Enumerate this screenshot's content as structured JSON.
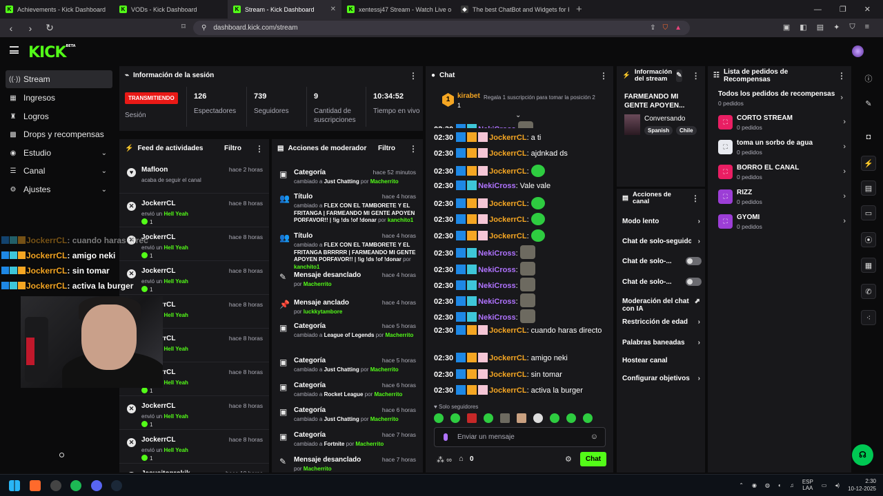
{
  "browser": {
    "tabs": [
      {
        "title": "Achievements - Kick Dashboard",
        "fav": "K",
        "active": false
      },
      {
        "title": "VODs - Kick Dashboard",
        "fav": "K",
        "active": false
      },
      {
        "title": "Stream - Kick Dashboard",
        "fav": "K",
        "active": true
      },
      {
        "title": "xentessj47 Stream - Watch Live o",
        "fav": "K",
        "active": false
      },
      {
        "title": "The best ChatBot and Widgets for Ki",
        "fav": "◆",
        "active": false
      }
    ],
    "new_tab": "+",
    "url": "dashboard.kick.com/stream"
  },
  "app": {
    "logo": "KICK",
    "logo_badge": "BETA"
  },
  "sidebar": {
    "items": [
      {
        "label": "Stream",
        "icon": "((•))"
      },
      {
        "label": "Ingresos",
        "icon": "▦"
      },
      {
        "label": "Logros",
        "icon": "🏆"
      },
      {
        "label": "Drops y recompensas",
        "icon": "🎁"
      },
      {
        "label": "Estudio",
        "icon": "◉"
      },
      {
        "label": "Canal",
        "icon": "☰"
      },
      {
        "label": "Ajustes",
        "icon": "⚙"
      }
    ]
  },
  "session": {
    "title": "Información de la sesión",
    "live_badge": "TRANSMITIENDO",
    "live_label": "Sesión",
    "stats": [
      {
        "value": "126",
        "label": "Espectadores"
      },
      {
        "value": "739",
        "label": "Seguidores"
      },
      {
        "value": "9",
        "label": "Cantidad de suscripciones"
      },
      {
        "value": "10:34:52",
        "label": "Tiempo en vivo"
      }
    ]
  },
  "feed": {
    "title": "Feed de actividades",
    "filter": "Filtro",
    "items": [
      {
        "name": "Mafloon",
        "time": "hace 2 horas",
        "desc": "acaba de seguir el canal",
        "gift": "",
        "count": "",
        "icon": "♥"
      },
      {
        "name": "JockerrCL",
        "time": "hace 8 horas",
        "desc": "envió un ",
        "gift": "Hell Yeah",
        "count": "1",
        "icon": "✕"
      },
      {
        "name": "JockerrCL",
        "time": "hace 8 horas",
        "desc": "envió un ",
        "gift": "Hell Yeah",
        "count": "1",
        "icon": "✕"
      },
      {
        "name": "JockerrCL",
        "time": "hace 8 horas",
        "desc": "envió un ",
        "gift": "Hell Yeah",
        "count": "1",
        "icon": "✕"
      },
      {
        "name": "JockerrCL",
        "time": "hace 8 horas",
        "desc": "envió un ",
        "gift": "Hell Yeah",
        "count": "1",
        "icon": "✕"
      },
      {
        "name": "JockerrCL",
        "time": "hace 8 horas",
        "desc": "envió un ",
        "gift": "Hell Yeah",
        "count": "1",
        "icon": "✕"
      },
      {
        "name": "JockerrCL",
        "time": "hace 8 horas",
        "desc": "envió un ",
        "gift": "Hell Yeah",
        "count": "1",
        "icon": "✕"
      },
      {
        "name": "JockerrCL",
        "time": "hace 8 horas",
        "desc": "envió un ",
        "gift": "Hell Yeah",
        "count": "1",
        "icon": "✕"
      },
      {
        "name": "JockerrCL",
        "time": "hace 8 horas",
        "desc": "envió un ",
        "gift": "Hell Yeah",
        "count": "1",
        "icon": "✕"
      },
      {
        "name": "Jesusitoprokik",
        "time": "hace 10 horas",
        "desc": "",
        "gift": "",
        "count": "",
        "icon": "♥"
      }
    ]
  },
  "mod": {
    "title": "Acciones de moderador",
    "filter": "Filtro",
    "items": [
      {
        "name": "Categoría",
        "time": "hace 52 minutos",
        "pre": "cambiado a ",
        "val": "Just Chatting",
        "mid": " por ",
        "by": "Macherrito",
        "icon": "▣"
      },
      {
        "name": "Título",
        "time": "hace 4 horas",
        "pre": "cambiado a ",
        "val": "FLEX CON EL TAMBORETE Y EL FRITANGA | FARMEANDO MI GENTE APOYEN PORFAVOR!! | !ig !ds !of !donar",
        "mid": " por ",
        "by": "kanchito1",
        "icon": "👥"
      },
      {
        "name": "Título",
        "time": "hace 4 horas",
        "pre": "cambiado a ",
        "val": "FLEX CON EL TAMBORETE Y EL FRITANGA BRRRRR | FARMEANDO MI GENTE APOYEN PORFAVOR!! | !ig !ds !of !donar",
        "mid": " por ",
        "by": "kanchito1",
        "icon": "👥"
      },
      {
        "name": "Mensaje desanclado",
        "time": "hace 4 horas",
        "pre": "",
        "val": "",
        "mid": "por ",
        "by": "Macherrito",
        "icon": "✎"
      },
      {
        "name": "Mensaje anclado",
        "time": "hace 4 horas",
        "pre": "",
        "val": "",
        "mid": "por ",
        "by": "luckkytambore",
        "icon": "📌"
      },
      {
        "name": "Categoría",
        "time": "hace 5 horas",
        "pre": "cambiado a ",
        "val": "League of Legends",
        "mid": " por ",
        "by": "Macherrito",
        "icon": "▣"
      },
      {
        "name": "Categoría",
        "time": "hace 5 horas",
        "pre": "cambiado a ",
        "val": "Just Chatting",
        "mid": " por ",
        "by": "Macherrito",
        "icon": "▣"
      },
      {
        "name": "Categoría",
        "time": "hace 6 horas",
        "pre": "cambiado a ",
        "val": "Rocket League",
        "mid": " por ",
        "by": "Macherrito",
        "icon": "▣"
      },
      {
        "name": "Categoría",
        "time": "hace 6 horas",
        "pre": "cambiado a ",
        "val": "Just Chatting",
        "mid": " por ",
        "by": "Macherrito",
        "icon": "▣"
      },
      {
        "name": "Categoría",
        "time": "hace 7 horas",
        "pre": "cambiado a ",
        "val": "Fortnite",
        "mid": " por ",
        "by": "Macherrito",
        "icon": "▣"
      },
      {
        "name": "Mensaje desanclado",
        "time": "hace 7 horas",
        "pre": "",
        "val": "",
        "mid": "por ",
        "by": "Macherrito",
        "icon": "✎"
      }
    ]
  },
  "overlay": {
    "lines": [
      {
        "user": "JockerrCL",
        "msg": ": cuando haras direc"
      },
      {
        "user": "JockerrCL",
        "msg": ": amigo neki"
      },
      {
        "user": "JockerrCL",
        "msg": ": sin tomar"
      },
      {
        "user": "JockerrCL",
        "msg": ": activa la burger"
      }
    ]
  },
  "chat": {
    "title": "Chat",
    "pinned": {
      "user": "kirabet",
      "count": "1",
      "msg": "Regala 1 suscripción para tomar la posición 2",
      "rank": "1"
    },
    "messages": [
      {
        "time": "02:30",
        "user": "NekiCross",
        "type": "u2",
        "text": "",
        "emote": "em2"
      },
      {
        "time": "02:30",
        "user": "JockerrCL",
        "type": "u1",
        "text": ": a ti",
        "emote": ""
      },
      {
        "time": "02:30",
        "user": "JockerrCL",
        "type": "u1",
        "text": ": ajdnkad ds",
        "emote": ""
      },
      {
        "time": "02:30",
        "user": "JockerrCL",
        "type": "u1",
        "text": ":",
        "emote": "em"
      },
      {
        "time": "02:30",
        "user": "NekiCross",
        "type": "u2",
        "text": ": Vale vale",
        "emote": ""
      },
      {
        "time": "02:30",
        "user": "JockerrCL",
        "type": "u1",
        "text": ":",
        "emote": "em"
      },
      {
        "time": "02:30",
        "user": "JockerrCL",
        "type": "u1",
        "text": ":",
        "emote": "em"
      },
      {
        "time": "02:30",
        "user": "JockerrCL",
        "type": "u1",
        "text": ":",
        "emote": "em"
      },
      {
        "time": "02:30",
        "user": "NekiCross",
        "type": "u2",
        "text": ":",
        "emote": "em2"
      },
      {
        "time": "02:30",
        "user": "NekiCross",
        "type": "u2",
        "text": ":",
        "emote": "em2"
      },
      {
        "time": "02:30",
        "user": "NekiCross",
        "type": "u2",
        "text": ":",
        "emote": "em2"
      },
      {
        "time": "02:30",
        "user": "NekiCross",
        "type": "u2",
        "text": ":",
        "emote": "em2"
      },
      {
        "time": "02:30",
        "user": "NekiCross",
        "type": "u2",
        "text": ":",
        "emote": "em2"
      },
      {
        "time": "02:30",
        "user": "JockerrCL",
        "type": "u1",
        "text": ": cuando haras directo",
        "emote": ""
      },
      {
        "time": "02:30",
        "user": "JockerrCL",
        "type": "u1",
        "text": ": amigo neki",
        "emote": ""
      },
      {
        "time": "02:30",
        "user": "JockerrCL",
        "type": "u1",
        "text": ": sin tomar",
        "emote": ""
      },
      {
        "time": "02:30",
        "user": "JockerrCL",
        "type": "u1",
        "text": ": activa la burger",
        "emote": ""
      }
    ],
    "followers_only": "Solo seguidores",
    "input_placeholder": "Enviar un mensaje",
    "infinity": "∞",
    "points": "0",
    "send": "Chat"
  },
  "stream_info": {
    "title": "Información del stream",
    "stream_title": "FARMEANDO MI GENTE APOYEN...",
    "category": "Conversando",
    "tags": [
      "Spanish",
      "Chile"
    ]
  },
  "channel_actions": {
    "title": "Acciones de canal",
    "items": [
      {
        "label": "Modo lento",
        "kind": "chev"
      },
      {
        "label": "Chat de solo-seguidores",
        "kind": "chev"
      },
      {
        "label": "Chat de solo-...",
        "kind": "toggle"
      },
      {
        "label": "Chat de solo-...",
        "kind": "toggle"
      },
      {
        "label": "Moderación del chat con IA",
        "kind": "ext"
      },
      {
        "label": "Restricción de edad",
        "kind": "chev"
      },
      {
        "label": "Palabras baneadas",
        "kind": "chev"
      },
      {
        "label": "Hostear canal",
        "kind": "none"
      },
      {
        "label": "Configurar objetivos",
        "kind": "chev"
      }
    ]
  },
  "rewards": {
    "title": "Lista de pedidos de Recompensas",
    "all_label": "Todos los pedidos de recompensas",
    "all_count": "0 pedidos",
    "items": [
      {
        "name": "CORTO STREAM",
        "count": "0 pedidos",
        "color": "#e91e63"
      },
      {
        "name": "toma un sorbo de agua",
        "count": "0 pedidos",
        "color": "#e8eaf0"
      },
      {
        "name": "BORRO EL CANAL",
        "count": "0 pedidos",
        "color": "#e91e63"
      },
      {
        "name": "RIZZ",
        "count": "0 pedidos",
        "color": "#9c3ed6"
      },
      {
        "name": "GYOMI",
        "count": "0 pedidos",
        "color": "#9c3ed6"
      }
    ]
  },
  "taskbar": {
    "lang": "ESP",
    "lang2": "LAA",
    "time": "2:30",
    "date": "10-12-2025"
  }
}
